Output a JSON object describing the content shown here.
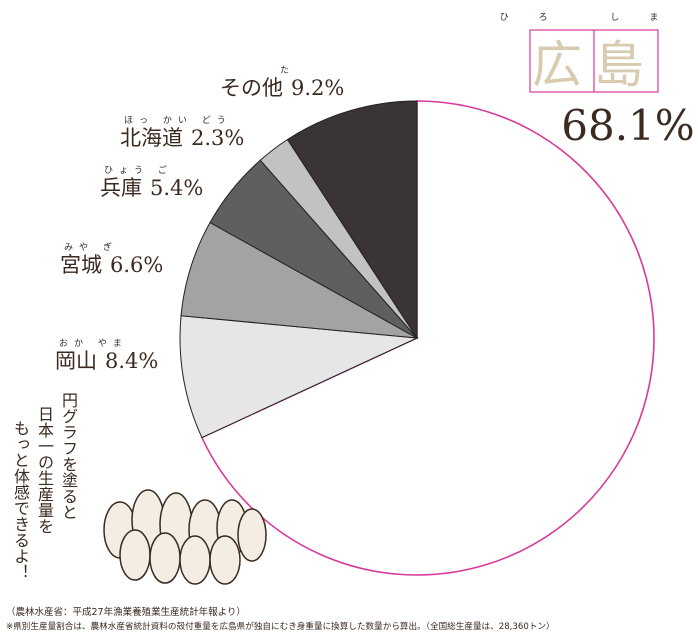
{
  "chart_data": {
    "type": "pie",
    "categories": [
      "広島",
      "岡山",
      "宮城",
      "兵庫",
      "北海道",
      "その他"
    ],
    "readings": [
      "ひろ しま",
      "おか やま",
      "みや ぎ",
      "ひょう ご",
      "ほっ かい どう",
      "た"
    ],
    "values": [
      68.1,
      8.4,
      6.6,
      5.4,
      2.3,
      9.2
    ],
    "value_labels": [
      "68.1%",
      "8.4%",
      "6.6%",
      "5.4%",
      "2.3%",
      "9.2%"
    ],
    "colors": [
      "#ffffff",
      "#e6e6e6",
      "#a3a3a3",
      "#5f5f5f",
      "#c2c2c2",
      "#3a3434"
    ],
    "edge_color": "#d8399a",
    "message": [
      "円グラフを塗ると",
      "日本一の生産量を",
      "もっと体感できるよ！"
    ],
    "notes": [
      "（農林水産省：平成27年漁業養殖業生産統計年報より）",
      "※県別生産量割合は、農林水産省統計資料の殻付重量を広島県が独自にむき身重量に換算した数量から算出。（全国総生産量は、28,360トン）"
    ]
  }
}
